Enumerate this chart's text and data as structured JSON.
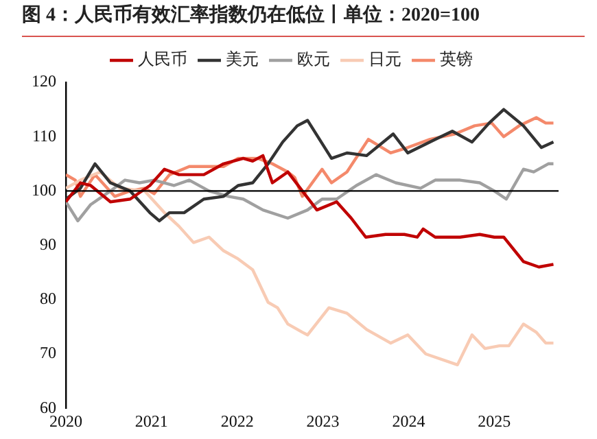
{
  "chart_data": {
    "type": "line",
    "title": "图 4：人民币有效汇率指数仍在低位丨单位：2020=100",
    "xlim": [
      2020,
      2025.75
    ],
    "xticks": [
      2020,
      2021,
      2022,
      2023,
      2024,
      2025
    ],
    "ylim": [
      60,
      120
    ],
    "yticks": [
      60,
      70,
      80,
      90,
      100,
      110,
      120
    ],
    "grid": false,
    "legend": "top",
    "marker": "none",
    "line_style": "solid",
    "ref_lines": [
      {
        "axis": "y",
        "value": 100,
        "color": "#000000"
      }
    ],
    "series": [
      {
        "name": "人民币",
        "color": "#c00000",
        "x": [
          2020,
          2020.17,
          2020.29,
          2020.52,
          2020.75,
          2020.98,
          2021.15,
          2021.32,
          2021.61,
          2021.84,
          2022.07,
          2022.18,
          2022.3,
          2022.41,
          2022.59,
          2022.76,
          2022.93,
          2023.16,
          2023.33,
          2023.5,
          2023.73,
          2023.95,
          2024.1,
          2024.17,
          2024.31,
          2024.6,
          2024.83,
          2025,
          2025.11,
          2025.34,
          2025.52,
          2025.69
        ],
        "values": [
          98,
          101.5,
          101,
          98,
          98.5,
          101,
          104,
          103,
          103,
          105,
          106,
          105.5,
          106.5,
          101.5,
          103.5,
          100,
          96.5,
          98,
          95,
          91.5,
          92,
          92,
          91.5,
          93,
          91.5,
          91.5,
          92,
          91.5,
          91.5,
          87,
          86,
          86.5
        ]
      },
      {
        "name": "美元",
        "color": "#333333",
        "x": [
          2020,
          2020.17,
          2020.34,
          2020.52,
          2020.75,
          2020.98,
          2021.09,
          2021.21,
          2021.38,
          2021.61,
          2021.84,
          2022.01,
          2022.18,
          2022.36,
          2022.53,
          2022.7,
          2022.82,
          2023.1,
          2023.28,
          2023.51,
          2023.82,
          2023.99,
          2024.31,
          2024.51,
          2024.74,
          2024.94,
          2025.11,
          2025.34,
          2025.55,
          2025.69
        ],
        "values": [
          98.5,
          100.5,
          105,
          101.5,
          100,
          96,
          94.5,
          96,
          96,
          98.5,
          99,
          101,
          101.5,
          105,
          109,
          112,
          113,
          106,
          107,
          106.5,
          110.5,
          107,
          109.5,
          111,
          109,
          112.5,
          115,
          112,
          108,
          109
        ]
      },
      {
        "name": "欧元",
        "color": "#a0a0a0",
        "x": [
          2020,
          2020.14,
          2020.29,
          2020.52,
          2020.69,
          2020.86,
          2021.03,
          2021.26,
          2021.44,
          2021.67,
          2021.9,
          2022.07,
          2022.3,
          2022.59,
          2022.82,
          2022.99,
          2023.16,
          2023.39,
          2023.62,
          2023.85,
          2024.14,
          2024.31,
          2024.6,
          2024.83,
          2025,
          2025.14,
          2025.34,
          2025.46,
          2025.63,
          2025.69
        ],
        "values": [
          98,
          94.5,
          97.5,
          100,
          102,
          101.5,
          102,
          101,
          102,
          100,
          99,
          98.5,
          96.5,
          95,
          96.5,
          98.5,
          98.5,
          101,
          103,
          101.5,
          100.5,
          102,
          102,
          101.5,
          100,
          98.5,
          104,
          103.5,
          105,
          105
        ]
      },
      {
        "name": "日元",
        "color": "#f8cbb4",
        "x": [
          2020,
          2020.17,
          2020.4,
          2020.63,
          2020.92,
          2021.15,
          2021.32,
          2021.49,
          2021.67,
          2021.84,
          2022.01,
          2022.18,
          2022.36,
          2022.47,
          2022.59,
          2022.76,
          2022.82,
          2023.07,
          2023.28,
          2023.51,
          2023.79,
          2023.99,
          2024.2,
          2024.57,
          2024.74,
          2024.89,
          2025.06,
          2025.17,
          2025.34,
          2025.49,
          2025.6,
          2025.69
        ],
        "values": [
          100.5,
          102,
          103.5,
          100.5,
          100,
          96,
          93.5,
          90.5,
          91.5,
          89,
          87.5,
          85.5,
          79.5,
          78.5,
          75.5,
          74,
          73.5,
          78.5,
          77.5,
          74.5,
          72,
          73.5,
          70,
          68,
          73.5,
          71,
          71.5,
          71.5,
          75.5,
          74,
          72,
          72
        ]
      },
      {
        "name": "英镑",
        "color": "#f4896b",
        "x": [
          2020,
          2020.11,
          2020.17,
          2020.34,
          2020.57,
          2020.75,
          2020.92,
          2021.03,
          2021.21,
          2021.44,
          2021.67,
          2021.84,
          2022.01,
          2022.24,
          2022.41,
          2022.59,
          2022.67,
          2022.76,
          2022.99,
          2023.1,
          2023.28,
          2023.53,
          2023.79,
          2023.99,
          2024.25,
          2024.54,
          2024.77,
          2024.97,
          2025.11,
          2025.29,
          2025.49,
          2025.6,
          2025.69
        ],
        "values": [
          103,
          102,
          99,
          103,
          99,
          100,
          100.5,
          99.5,
          103,
          104.5,
          104.5,
          104.5,
          106,
          106,
          105,
          103.5,
          102.5,
          99,
          104,
          101.5,
          103.5,
          109.5,
          107,
          108,
          109.5,
          110.5,
          112,
          112.5,
          110,
          112,
          113.5,
          112.5,
          112.5
        ]
      }
    ]
  }
}
